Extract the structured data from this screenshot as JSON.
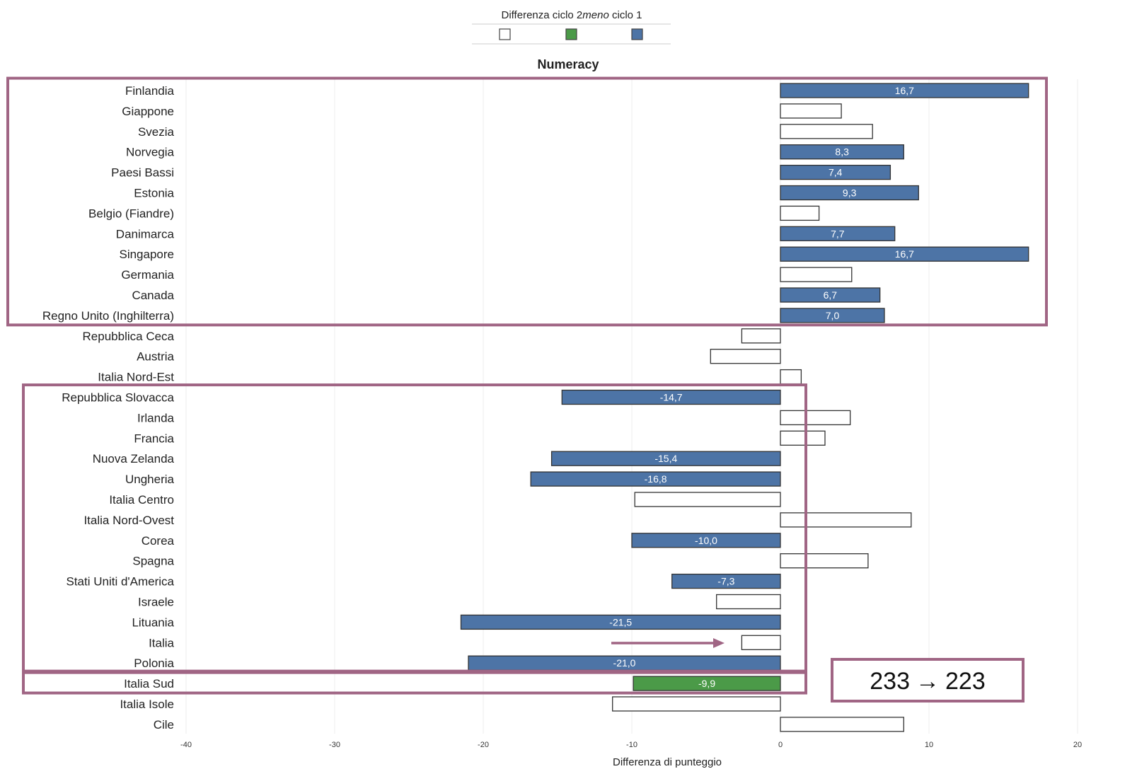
{
  "legend": {
    "title_prefix": "Differenza ciclo 2",
    "title_italic": "meno",
    "title_suffix": " ciclo 1",
    "swatches": [
      {
        "fill": "#ffffff",
        "stroke": "#444444"
      },
      {
        "fill": "#4b9a48",
        "stroke": "#444444"
      },
      {
        "fill": "#4d74a6",
        "stroke": "#444444"
      }
    ]
  },
  "annotation": {
    "text_from": "233",
    "arrow": "→",
    "text_to": "223"
  },
  "colors": {
    "blue": "#4d74a6",
    "green": "#4b9a48",
    "white": "#ffffff",
    "bar_stroke": "#333333",
    "highlight": "#a06584",
    "grid": "#eeeeee"
  },
  "chart_data": {
    "type": "bar",
    "orientation": "horizontal",
    "title": "Numeracy",
    "xlabel": "Differenza di punteggio",
    "xlim": [
      -40,
      20
    ],
    "xticks": [
      -40,
      -30,
      -20,
      -10,
      0,
      10,
      20
    ],
    "xtick_labels": [
      "-40",
      "-30",
      "-20",
      "-10",
      "0",
      "10",
      "20"
    ],
    "grid": true,
    "categories": [
      "Finlandia",
      "Giappone",
      "Svezia",
      "Norvegia",
      "Paesi Bassi",
      "Estonia",
      "Belgio (Fiandre)",
      "Danimarca",
      "Singapore",
      "Germania",
      "Canada",
      "Regno Unito (Inghilterra)",
      "Repubblica Ceca",
      "Austria",
      "Italia Nord-Est",
      "Repubblica Slovacca",
      "Irlanda",
      "Francia",
      "Nuova Zelanda",
      "Ungheria",
      "Italia Centro",
      "Italia Nord-Ovest",
      "Corea",
      "Spagna",
      "Stati Uniti d'America",
      "Israele",
      "Lituania",
      "Italia",
      "Polonia",
      "Italia Sud",
      "Italia Isole",
      "Cile"
    ],
    "values": [
      16.7,
      4.1,
      6.2,
      8.3,
      7.4,
      9.3,
      2.6,
      7.7,
      16.7,
      4.8,
      6.7,
      7.0,
      -2.6,
      -4.7,
      1.4,
      -14.7,
      4.7,
      3.0,
      -15.4,
      -16.8,
      -9.8,
      8.8,
      -10.0,
      5.9,
      -7.3,
      -4.3,
      -21.5,
      -2.6,
      -21.0,
      -9.9,
      -11.3,
      8.3
    ],
    "fill": [
      "blue",
      "white",
      "white",
      "blue",
      "blue",
      "blue",
      "white",
      "blue",
      "blue",
      "white",
      "blue",
      "blue",
      "white",
      "white",
      "white",
      "blue",
      "white",
      "white",
      "blue",
      "blue",
      "white",
      "white",
      "blue",
      "white",
      "blue",
      "white",
      "blue",
      "white",
      "blue",
      "green",
      "white",
      "white"
    ],
    "data_labels": [
      "16,7",
      "",
      "",
      "8,3",
      "7,4",
      "9,3",
      "",
      "7,7",
      "16,7",
      "",
      "6,7",
      "7,0",
      "",
      "",
      "",
      "-14,7",
      "",
      "",
      "-15,4",
      "-16,8",
      "",
      "",
      "-10,0",
      "",
      "-7,3",
      "",
      "-21,5",
      "",
      "-21,0",
      "-9,9",
      "",
      ""
    ],
    "highlight_groups": [
      {
        "from": "Finlandia",
        "to": "Regno Unito (Inghilterra)"
      },
      {
        "from": "Repubblica Slovacca",
        "to": "Polonia"
      },
      {
        "from": "Italia Sud",
        "to": "Italia Sud"
      }
    ]
  }
}
